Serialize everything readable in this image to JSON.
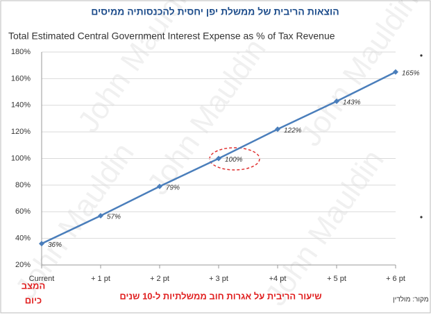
{
  "header": {
    "title": "הוצאות הריבית של ממשלת יפן יחסית להכנסותיה ממיסים"
  },
  "chart_data": {
    "type": "line",
    "title": "Total Estimated Central Government Interest Expense as % of Tax Revenue",
    "categories": [
      "Current",
      "+ 1 pt",
      "+ 2 pt",
      "+ 3 pt",
      "+4 pt",
      "+ 5 pt",
      "+ 6 pt"
    ],
    "series": [
      {
        "name": "Interest expense as % of tax revenue",
        "color": "#4a7ebb",
        "values": [
          36,
          57,
          79,
          100,
          122,
          143,
          165
        ],
        "value_labels": [
          "36%",
          "57%",
          "79%",
          "100%",
          "122%",
          "143%",
          "165%"
        ]
      }
    ],
    "ylim": [
      20,
      180
    ],
    "yticks": [
      {
        "value": 20,
        "label": "20%"
      },
      {
        "value": 40,
        "label": "40%"
      },
      {
        "value": 60,
        "label": "60%"
      },
      {
        "value": 80,
        "label": "80%"
      },
      {
        "value": 100,
        "label": "100%"
      },
      {
        "value": 120,
        "label": "120%"
      },
      {
        "value": 140,
        "label": "140%"
      },
      {
        "value": 160,
        "label": "160%"
      },
      {
        "value": 180,
        "label": "180%"
      }
    ],
    "grid": true,
    "watermark": "John Mauldin"
  },
  "annotations": {
    "current_state": [
      "המצב",
      "כיום"
    ],
    "x_axis_caption": "שיעור הריבית על אגרות חוב ממשלתיות ל-10 שנים",
    "source": "מקור: מולדין"
  }
}
